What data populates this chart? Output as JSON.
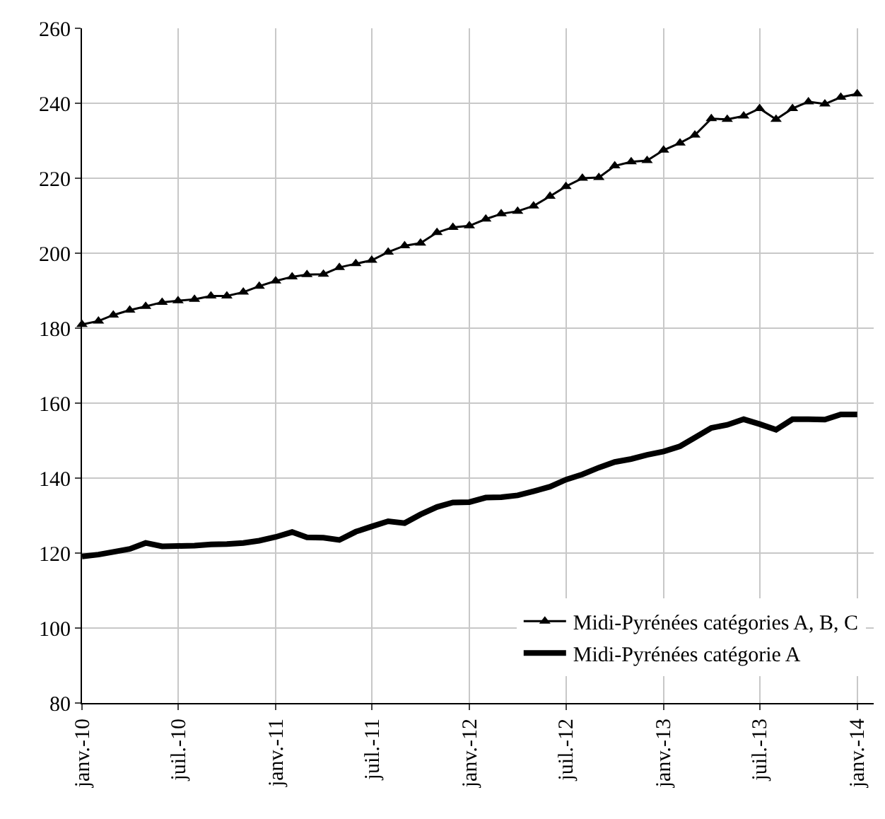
{
  "chart_data": {
    "type": "line",
    "x": [
      "2010-01",
      "2010-02",
      "2010-03",
      "2010-04",
      "2010-05",
      "2010-06",
      "2010-07",
      "2010-08",
      "2010-09",
      "2010-10",
      "2010-11",
      "2010-12",
      "2011-01",
      "2011-02",
      "2011-03",
      "2011-04",
      "2011-05",
      "2011-06",
      "2011-07",
      "2011-08",
      "2011-09",
      "2011-10",
      "2011-11",
      "2011-12",
      "2012-01",
      "2012-02",
      "2012-03",
      "2012-04",
      "2012-05",
      "2012-06",
      "2012-07",
      "2012-08",
      "2012-09",
      "2012-10",
      "2012-11",
      "2012-12",
      "2013-01",
      "2013-02",
      "2013-03",
      "2013-04",
      "2013-05",
      "2013-06",
      "2013-07",
      "2013-08",
      "2013-09",
      "2013-10",
      "2013-11",
      "2013-12",
      "2014-01"
    ],
    "series": [
      {
        "name": "Midi-Pyrénées catégories A, B, C",
        "color": "#000000",
        "marker": "triangle",
        "values": [
          181,
          181.9,
          183.5,
          184.8,
          185.8,
          186.9,
          187.3,
          187.7,
          188.6,
          188.6,
          189.6,
          191.2,
          192.6,
          193.7,
          194.3,
          194.4,
          196.2,
          197.2,
          198.1,
          200.3,
          202,
          202.7,
          205.5,
          206.9,
          207.3,
          209.1,
          210.5,
          211.2,
          212.6,
          215.2,
          217.8,
          220,
          220.2,
          223.3,
          224.4,
          224.7,
          227.5,
          229.4,
          231.5,
          235.9,
          235.7,
          236.6,
          238.6,
          235.7,
          238.6,
          240.4,
          239.8,
          241.6,
          242.5
        ]
      },
      {
        "name": "Midi-Pyrénées catégorie A",
        "color": "#000000",
        "marker": "none",
        "values": [
          119.1,
          119.6,
          120.3,
          121.1,
          122.7,
          121.8,
          121.9,
          122,
          122.3,
          122.4,
          122.7,
          123.3,
          124.3,
          125.6,
          124.2,
          124.1,
          123.5,
          125.7,
          127.1,
          128.5,
          128,
          130.3,
          132.3,
          133.5,
          133.6,
          134.8,
          134.9,
          135.4,
          136.5,
          137.7,
          139.6,
          141,
          142.8,
          144.3,
          145.1,
          146.2,
          147.1,
          148.5,
          150.8,
          153.4,
          154.2,
          155.7,
          154.4,
          152.9,
          155.7,
          155.7,
          155.6,
          157,
          157
        ]
      }
    ],
    "xlim": [
      "2010-01",
      "2014-02"
    ],
    "xticks": [
      {
        "value": "2010-01",
        "label": "janv.-10"
      },
      {
        "value": "2010-07",
        "label": "juil.-10"
      },
      {
        "value": "2011-01",
        "label": "janv.-11"
      },
      {
        "value": "2011-07",
        "label": "juil.-11"
      },
      {
        "value": "2012-01",
        "label": "janv.-12"
      },
      {
        "value": "2012-07",
        "label": "juil.-12"
      },
      {
        "value": "2013-01",
        "label": "janv.-13"
      },
      {
        "value": "2013-07",
        "label": "juil.-13"
      },
      {
        "value": "2014-01",
        "label": "janv.-14"
      }
    ],
    "ylim": [
      80,
      260
    ],
    "yticks": [
      80,
      100,
      120,
      140,
      160,
      180,
      200,
      220,
      240,
      260
    ],
    "grid": true,
    "legend": "bottom right",
    "line_style": "solid"
  }
}
